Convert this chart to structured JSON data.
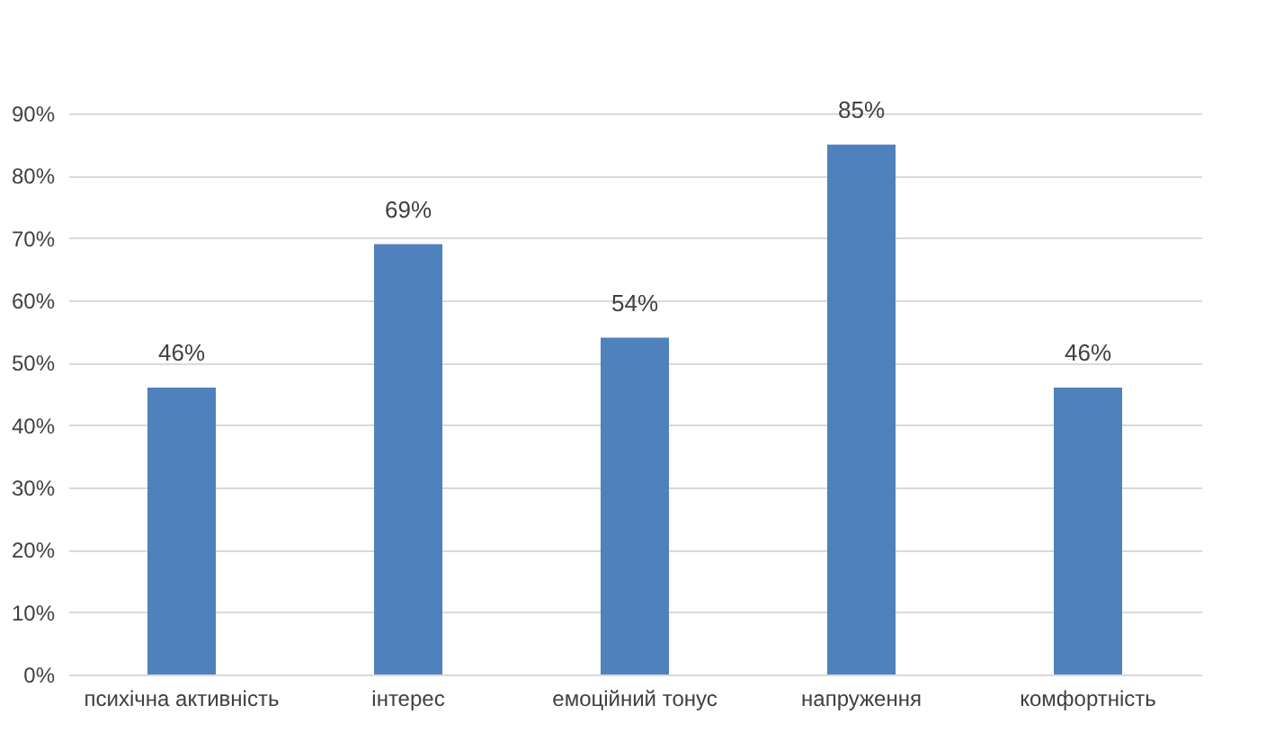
{
  "chart_data": {
    "type": "bar",
    "categories": [
      "психічна активність",
      "інтерес",
      "емоційний тонус",
      "напруження",
      "комфортність"
    ],
    "values": [
      46,
      69,
      54,
      85,
      46
    ],
    "color": "#4f81bd",
    "value_labels": [
      "46%",
      "69%",
      "54%",
      "85%",
      "46%"
    ],
    "ylim": [
      0,
      90
    ],
    "yticks": [
      {
        "value": 0,
        "label": "0%"
      },
      {
        "value": 10,
        "label": "10%"
      },
      {
        "value": 20,
        "label": "20%"
      },
      {
        "value": 30,
        "label": "30%"
      },
      {
        "value": 40,
        "label": "40%"
      },
      {
        "value": 50,
        "label": "50%"
      },
      {
        "value": 60,
        "label": "60%"
      },
      {
        "value": 70,
        "label": "70%"
      },
      {
        "value": 80,
        "label": "80%"
      },
      {
        "value": 90,
        "label": "90%"
      }
    ],
    "grid": "y"
  }
}
